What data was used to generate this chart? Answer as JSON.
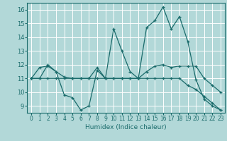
{
  "xlabel": "Humidex (Indice chaleur)",
  "bg_color": "#b2d8d8",
  "grid_color": "#ffffff",
  "line_color": "#1a6b6b",
  "xlim": [
    -0.5,
    23.5
  ],
  "ylim": [
    8.5,
    16.5
  ],
  "yticks": [
    9,
    10,
    11,
    12,
    13,
    14,
    15,
    16
  ],
  "xticks": [
    0,
    1,
    2,
    3,
    4,
    5,
    6,
    7,
    8,
    9,
    10,
    11,
    12,
    13,
    14,
    15,
    16,
    17,
    18,
    19,
    20,
    21,
    22,
    23
  ],
  "series": [
    {
      "x": [
        0,
        1,
        2,
        3,
        4,
        5,
        6,
        7,
        8,
        9,
        10,
        11,
        12,
        13,
        14,
        15,
        16,
        17,
        18,
        19,
        20,
        21,
        22,
        23
      ],
      "y": [
        11.0,
        11.8,
        11.9,
        11.5,
        9.8,
        9.6,
        8.7,
        9.0,
        11.6,
        11.0,
        14.6,
        13.0,
        11.5,
        11.0,
        14.7,
        15.2,
        16.2,
        14.6,
        15.5,
        13.7,
        10.9,
        9.5,
        9.0,
        8.7
      ]
    },
    {
      "x": [
        0,
        1,
        2,
        3,
        4,
        5,
        6,
        7,
        8,
        9,
        10,
        11,
        12,
        13,
        14,
        15,
        16,
        17,
        18,
        19,
        20,
        21,
        22,
        23
      ],
      "y": [
        11.0,
        11.0,
        12.0,
        11.5,
        11.1,
        11.0,
        11.0,
        11.0,
        11.8,
        11.0,
        11.0,
        11.0,
        11.0,
        11.0,
        11.5,
        11.9,
        12.0,
        11.8,
        11.9,
        11.9,
        11.9,
        11.0,
        10.5,
        10.0
      ]
    },
    {
      "x": [
        0,
        1,
        2,
        3,
        4,
        5,
        6,
        7,
        8,
        9,
        10,
        11,
        12,
        13,
        14,
        15,
        16,
        17,
        18,
        19,
        20,
        21,
        22,
        23
      ],
      "y": [
        11.0,
        11.0,
        11.0,
        11.0,
        11.0,
        11.0,
        11.0,
        11.0,
        11.0,
        11.0,
        11.0,
        11.0,
        11.0,
        11.0,
        11.0,
        11.0,
        11.0,
        11.0,
        11.0,
        10.5,
        10.2,
        9.7,
        9.2,
        8.7
      ]
    }
  ]
}
